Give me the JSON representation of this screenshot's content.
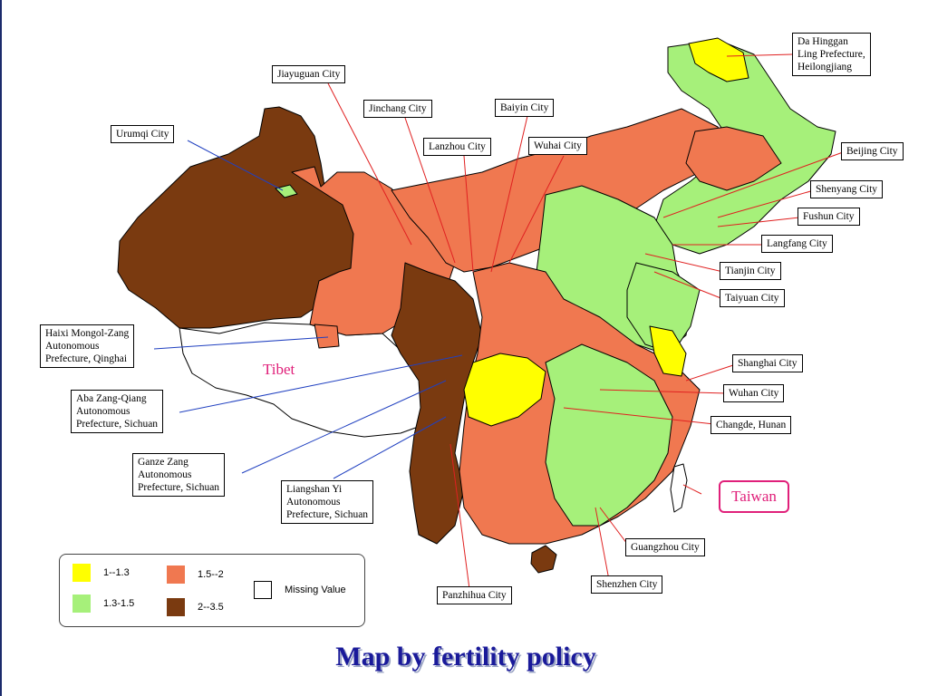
{
  "title": "Map by  fertility policy",
  "colors": {
    "level_1_13": "#ffff00",
    "level_13_15": "#a6f07a",
    "level_15_2": "#f07850",
    "level_2_35": "#7a3a10",
    "missing": "#ffffff",
    "callout_line_red": "#e02020",
    "callout_line_blue": "#2040c0",
    "region_label": "#e0207a",
    "title_color": "#1a1a9a"
  },
  "region_labels": {
    "tibet": "Tibet",
    "taiwan": "Taiwan"
  },
  "callouts": {
    "jiayuguan": "Jiayuguan City",
    "jinchang": "Jinchang City",
    "baiyin": "Baiyin City",
    "urumqi": "Urumqi City",
    "lanzhou": "Lanzhou City",
    "wuhai": "Wuhai City",
    "da_hinggan_1": "Da Hinggan",
    "da_hinggan_2": "Ling Prefecture,",
    "da_hinggan_3": "Heilongjiang",
    "beijing": "Beijing City",
    "shenyang": "Shenyang City",
    "fushun": "Fushun City",
    "langfang": "Langfang City",
    "tianjin": "Tianjin City",
    "taiyuan": "Taiyuan City",
    "haixi_1": "Haixi Mongol-Zang",
    "haixi_2": "Autonomous",
    "haixi_3": "Prefecture, Qinghai",
    "aba_1": "Aba Zang-Qiang",
    "aba_2": "Autonomous",
    "aba_3": "Prefecture, Sichuan",
    "ganze_1": "Ganze Zang",
    "ganze_2": "Autonomous",
    "ganze_3": "Prefecture, Sichuan",
    "liangshan_1": "Liangshan Yi",
    "liangshan_2": "Autonomous",
    "liangshan_3": "Prefecture, Sichuan",
    "shanghai": "Shanghai City",
    "wuhan": "Wuhan City",
    "changde": "Changde, Hunan",
    "guangzhou": "Guangzhou City",
    "shenzhen": "Shenzhen City",
    "panzhihua": "Panzhihua City"
  },
  "legend": {
    "items": [
      {
        "label": "1--1.3",
        "color": "#ffff00"
      },
      {
        "label": "1.5--2",
        "color": "#f07850"
      },
      {
        "label": "1.3-1.5",
        "color": "#a6f07a"
      },
      {
        "label": "2--3.5",
        "color": "#7a3a10"
      }
    ],
    "missing_label": "Missing Value"
  }
}
